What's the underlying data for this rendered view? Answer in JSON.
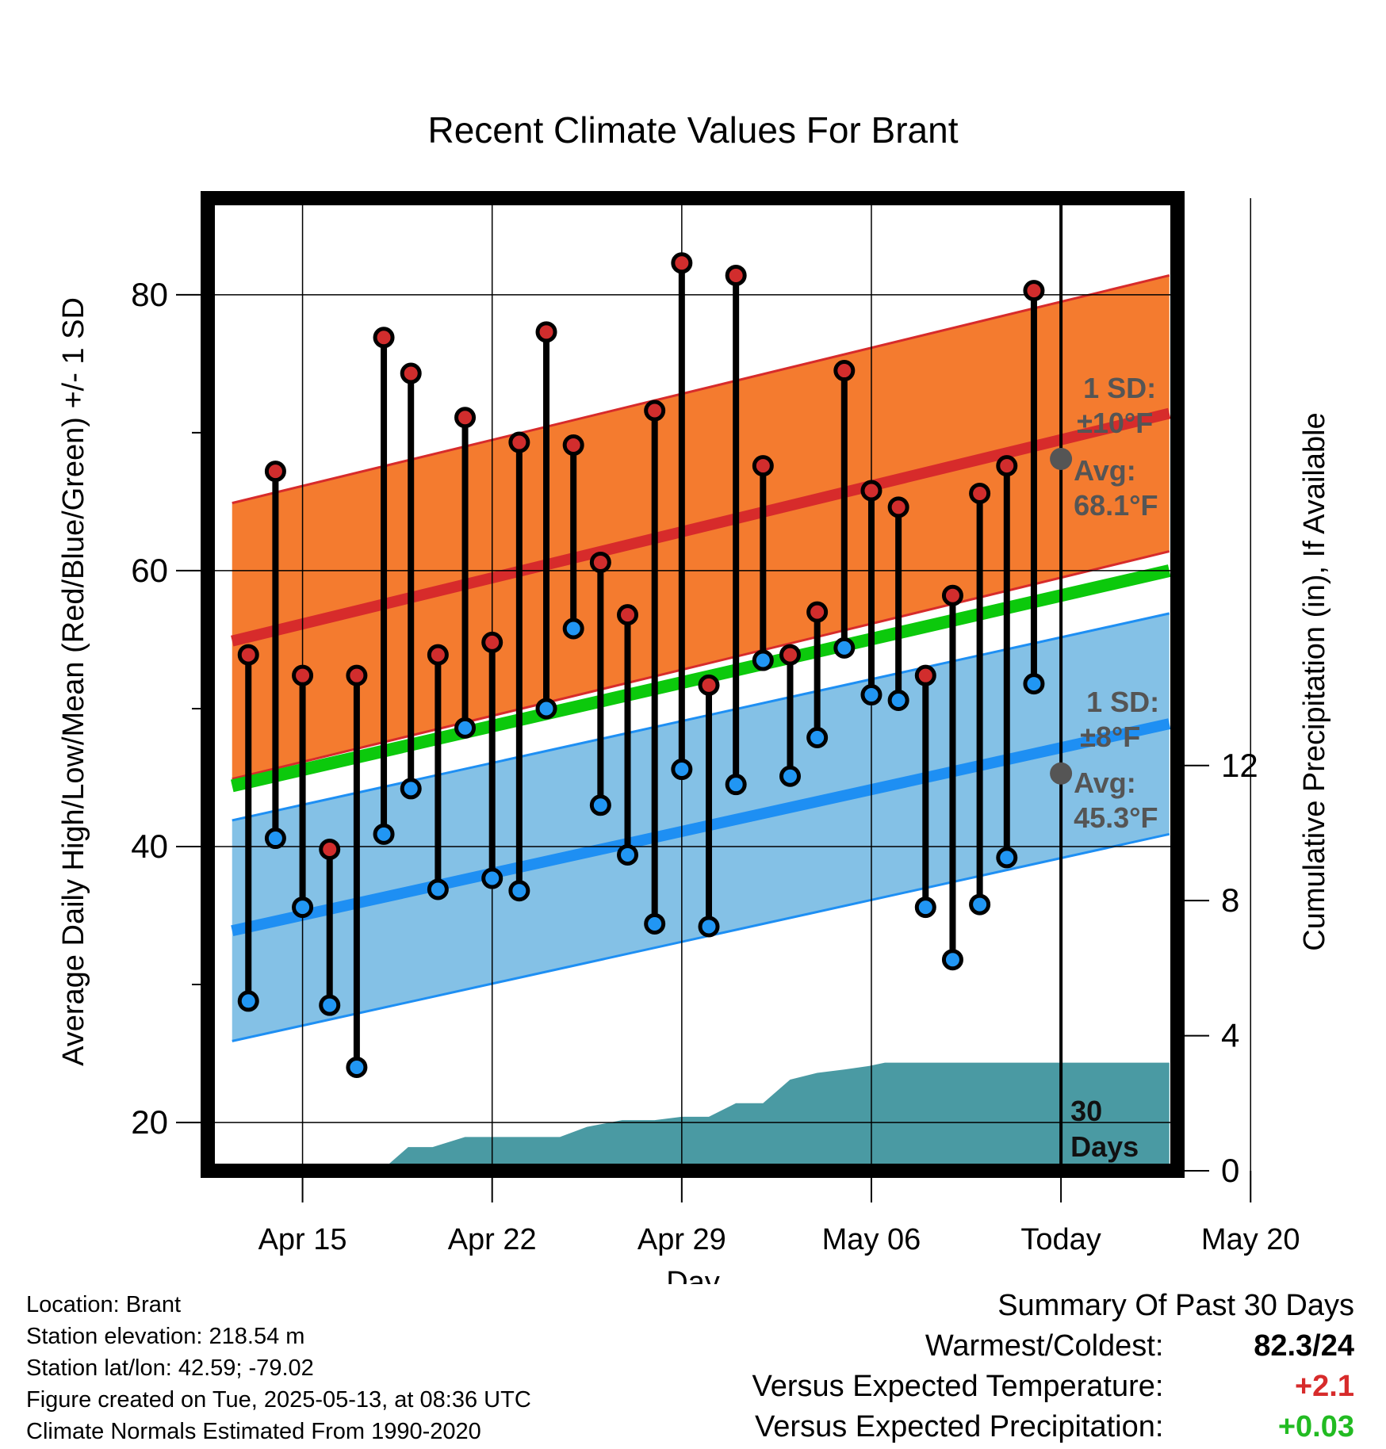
{
  "chart_data": {
    "type": "line",
    "title": "Recent Climate Values For Brant",
    "xlabel": "Day",
    "ylabel": "Average Daily High/Low/Mean (Red/Blue/Green) +/- 1 SD",
    "y2label": "Cumulative Precipitation (in), If Available",
    "xlim": [
      -3.5,
      32.3
    ],
    "ylim": [
      16.5,
      87.0
    ],
    "y2lim": [
      0,
      28.8
    ],
    "x_ticks": [
      {
        "x": 0,
        "label": "Apr 15"
      },
      {
        "x": 7,
        "label": "Apr 22"
      },
      {
        "x": 14,
        "label": "Apr 29"
      },
      {
        "x": 21,
        "label": "May 06"
      },
      {
        "x": 28,
        "label": "Today"
      },
      {
        "x": 35,
        "label": "May 20"
      }
    ],
    "y_ticks": [
      20,
      40,
      60,
      80
    ],
    "y_minor_ticks": [
      30,
      50,
      70
    ],
    "y2_ticks": [
      0,
      4,
      8,
      12
    ],
    "grid": true,
    "days": [
      "Apr 13",
      "Apr 14",
      "Apr 15",
      "Apr 16",
      "Apr 17",
      "Apr 18",
      "Apr 19",
      "Apr 20",
      "Apr 21",
      "Apr 22",
      "Apr 23",
      "Apr 24",
      "Apr 25",
      "Apr 26",
      "Apr 27",
      "Apr 28",
      "Apr 29",
      "Apr 30",
      "May 01",
      "May 02",
      "May 03",
      "May 04",
      "May 05",
      "May 06",
      "May 07",
      "May 08",
      "May 09",
      "May 10",
      "May 11",
      "May 12"
    ],
    "highs": [
      53.9,
      67.2,
      52.4,
      39.8,
      52.4,
      76.9,
      74.3,
      53.9,
      71.1,
      54.8,
      69.3,
      77.3,
      69.1,
      60.6,
      56.8,
      71.6,
      82.3,
      51.7,
      81.4,
      67.6,
      53.9,
      57.0,
      74.5,
      65.8,
      64.6,
      52.4,
      58.2,
      65.6,
      67.6,
      80.3
    ],
    "lows": [
      28.8,
      40.6,
      35.6,
      28.5,
      24.0,
      40.9,
      44.2,
      36.9,
      48.6,
      37.7,
      36.8,
      50.0,
      55.8,
      43.0,
      39.4,
      34.4,
      45.6,
      34.2,
      44.5,
      53.5,
      45.1,
      47.9,
      54.4,
      51.0,
      50.6,
      35.6,
      31.8,
      35.8,
      39.2,
      51.8
    ],
    "normal_high": {
      "x": [
        -2.6,
        32.0
      ],
      "values": [
        54.9,
        71.4
      ],
      "sd": 10,
      "label": "1 SD:",
      "label2": "±10°F",
      "avg_label": "Avg:",
      "avg_value": "68.1°F"
    },
    "normal_low": {
      "x": [
        -2.6,
        32.0
      ],
      "values": [
        33.9,
        48.9
      ],
      "sd": 8,
      "label": "1 SD:",
      "label2": "±8°F",
      "avg_label": "Avg:",
      "avg_value": "45.3°F"
    },
    "normal_mean": {
      "x": [
        -2.6,
        32.0
      ],
      "values": [
        44.4,
        60.0
      ]
    },
    "today_marks": [
      {
        "x": 28,
        "y": 68.1
      },
      {
        "x": 28,
        "y": 45.3
      }
    ],
    "precip": {
      "x": [
        2.9,
        3.9,
        4.8,
        6.0,
        7.0,
        8.0,
        9.5,
        10.5,
        11.8,
        13.0,
        14.0,
        15.0,
        16.0,
        17.0,
        18.0,
        19.0,
        20.0,
        20.9,
        21.5,
        23.0,
        28.0,
        32.0
      ],
      "values": [
        0,
        0.7,
        0.7,
        1.0,
        1.0,
        1.0,
        1.0,
        1.3,
        1.5,
        1.5,
        1.6,
        1.6,
        2.0,
        2.0,
        2.7,
        2.9,
        3.0,
        3.1,
        3.2,
        3.2,
        3.2,
        3.2
      ]
    },
    "window_label_1": "30",
    "window_label_2": "Days",
    "colors": {
      "high_band": "#f47b2f",
      "high_line": "#d72b2b",
      "low_band": "#84c1e6",
      "low_line": "#1e8ff3",
      "mean": "#0cc90c",
      "precip": "#4a9aa3",
      "high_dot": "#d12d2d",
      "low_dot": "#2196f3",
      "annotation": "#555555"
    }
  },
  "info": {
    "location": "Location: Brant",
    "elevation": "Station elevation: 218.54 m",
    "latlon": "Station lat/lon: 42.59; -79.02",
    "created": "Figure created on Tue, 2025-05-13, at 08:36 UTC",
    "normals": "Climate Normals Estimated From 1990-2020"
  },
  "summary": {
    "title": "Summary Of Past 30 Days",
    "warmest_label": "Warmest/Coldest:",
    "warmest_value": "82.3/24",
    "temp_label": "Versus Expected Temperature:",
    "temp_value": "+2.1",
    "temp_color": "#d72b2b",
    "precip_label": "Versus Expected Precipitation:",
    "precip_value": "+0.03",
    "precip_color": "#22bb22"
  }
}
